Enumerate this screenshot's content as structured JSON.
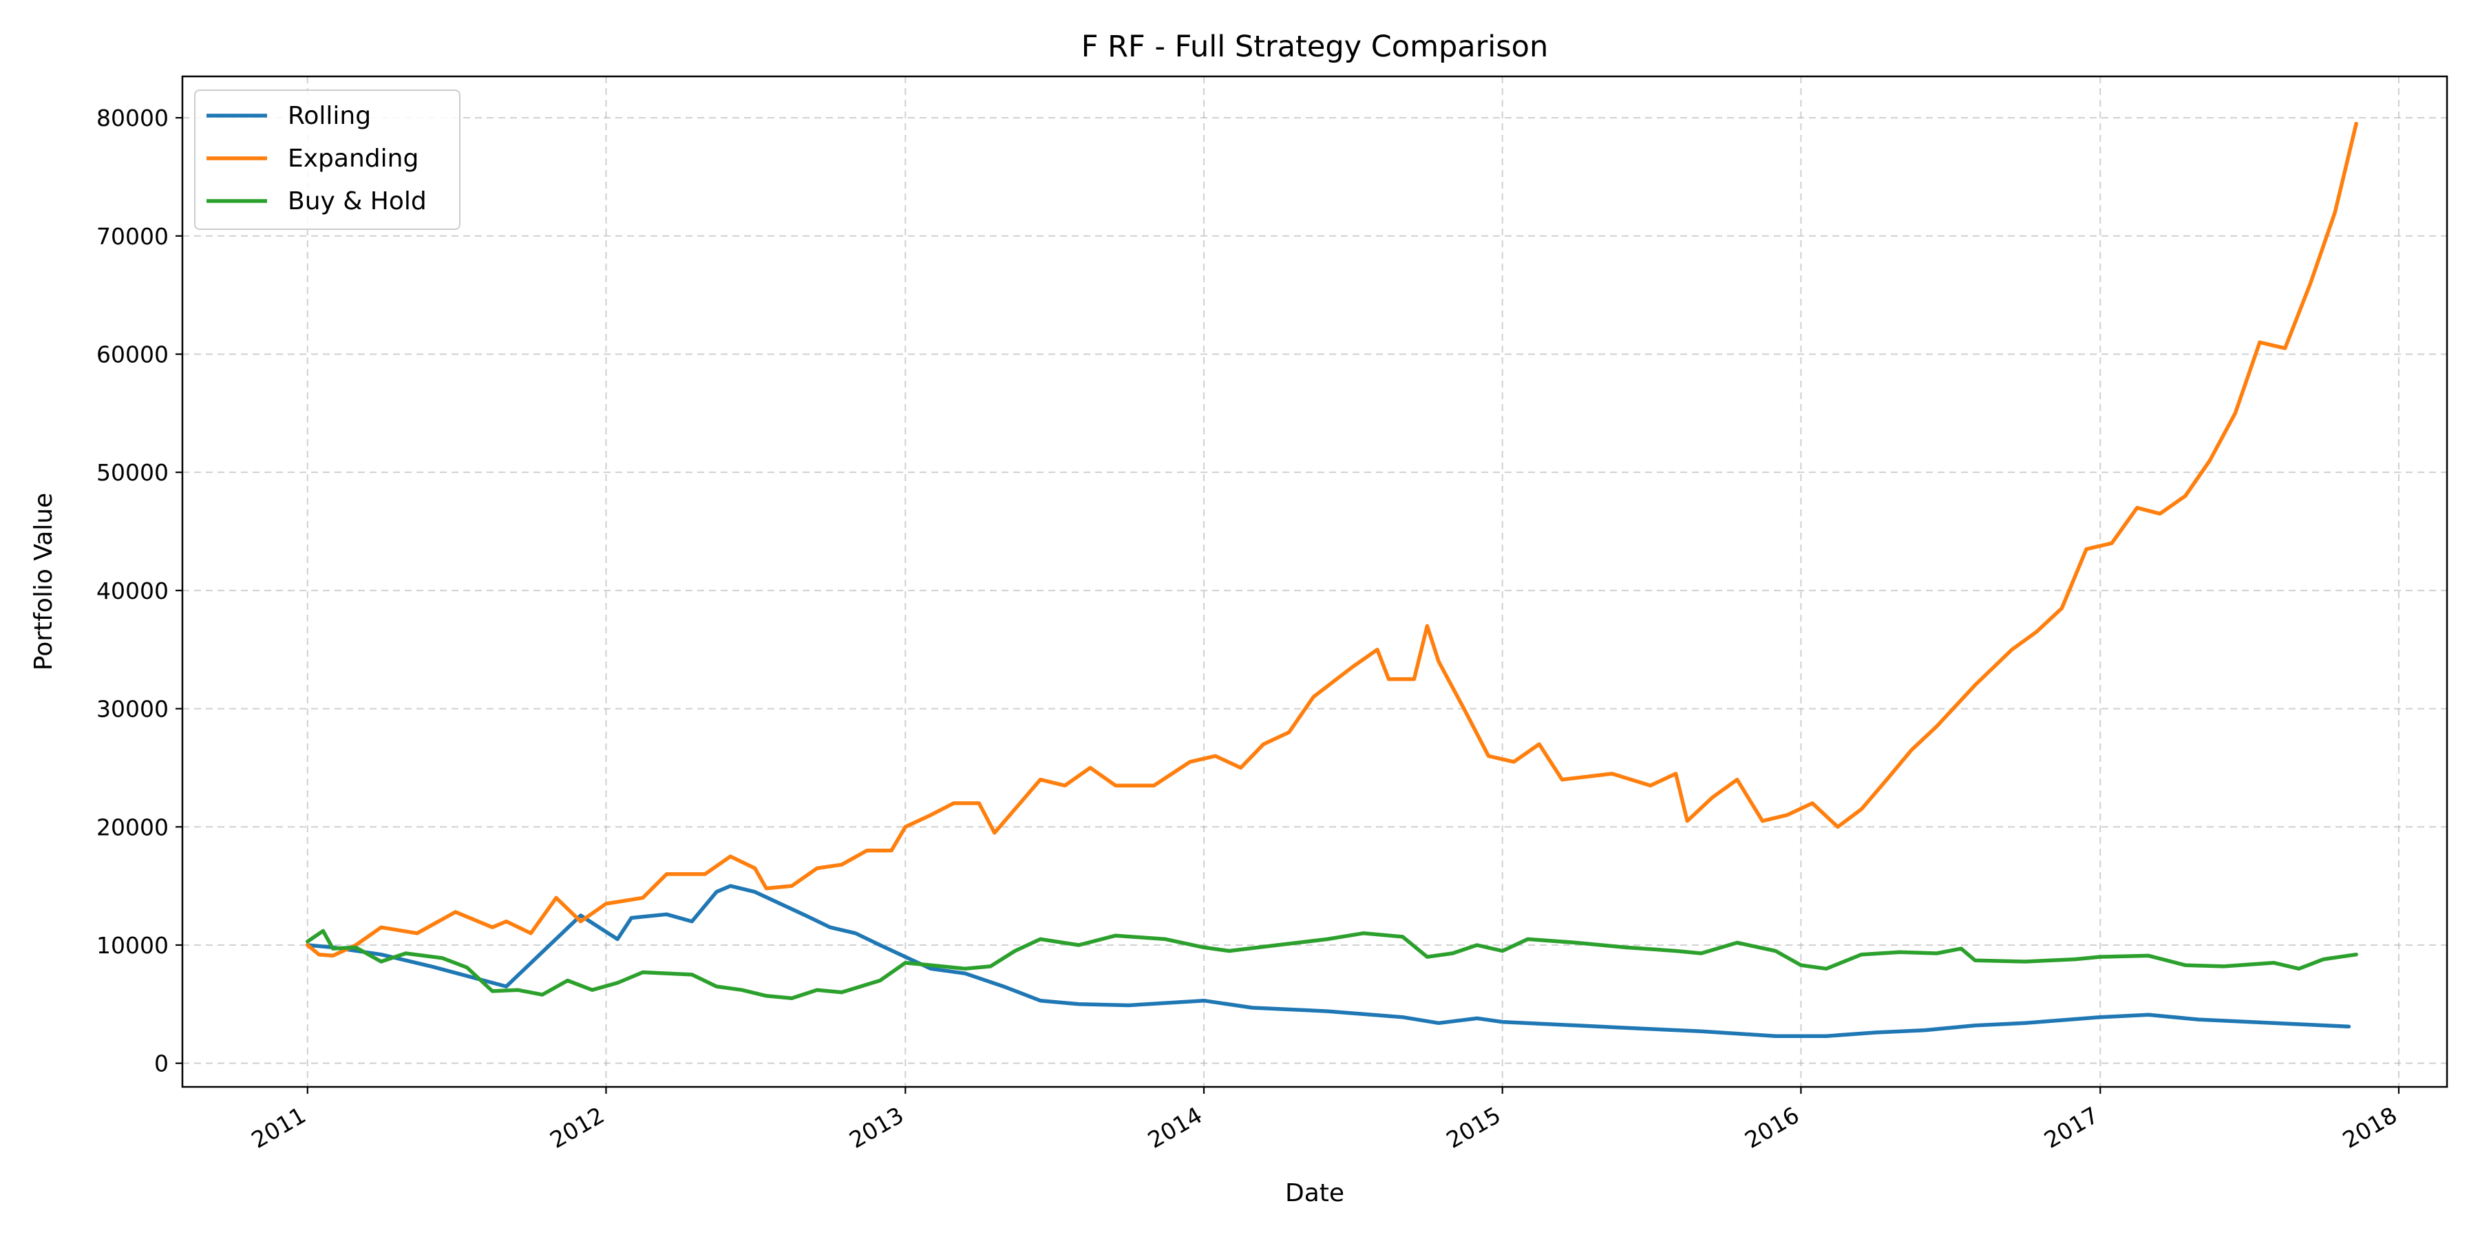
{
  "chart_data": {
    "type": "line",
    "title": "F RF - Full Strategy Comparison",
    "xlabel": "Date",
    "ylabel": "Portfolio Value",
    "xlim": [
      "2010-08-01",
      "2018-03-01"
    ],
    "ylim": [
      -2000,
      83500
    ],
    "x_ticks": [
      {
        "date": "2011-01-01",
        "label": "2011"
      },
      {
        "date": "2012-01-01",
        "label": "2012"
      },
      {
        "date": "2013-01-01",
        "label": "2013"
      },
      {
        "date": "2014-01-01",
        "label": "2014"
      },
      {
        "date": "2015-01-01",
        "label": "2015"
      },
      {
        "date": "2016-01-01",
        "label": "2016"
      },
      {
        "date": "2017-01-01",
        "label": "2017"
      },
      {
        "date": "2018-01-01",
        "label": "2018"
      }
    ],
    "y_ticks": [
      0,
      10000,
      20000,
      30000,
      40000,
      50000,
      60000,
      70000,
      80000
    ],
    "grid": true,
    "legend_position": "top-left",
    "series": [
      {
        "name": "Rolling",
        "color": "#1f77b4",
        "points": [
          [
            "2011-01-01",
            10000
          ],
          [
            "2011-02-01",
            9800
          ],
          [
            "2011-04-01",
            9200
          ],
          [
            "2011-06-01",
            8200
          ],
          [
            "2011-09-01",
            6500
          ],
          [
            "2011-12-01",
            12500
          ],
          [
            "2012-01-15",
            10500
          ],
          [
            "2012-02-01",
            12300
          ],
          [
            "2012-03-15",
            12600
          ],
          [
            "2012-04-15",
            12000
          ],
          [
            "2012-05-15",
            14500
          ],
          [
            "2012-06-01",
            15000
          ],
          [
            "2012-07-01",
            14500
          ],
          [
            "2012-08-01",
            13500
          ],
          [
            "2012-09-01",
            12500
          ],
          [
            "2012-10-01",
            11500
          ],
          [
            "2012-11-01",
            11000
          ],
          [
            "2012-12-01",
            10000
          ],
          [
            "2013-01-01",
            9000
          ],
          [
            "2013-02-01",
            8000
          ],
          [
            "2013-03-15",
            7600
          ],
          [
            "2013-05-01",
            6500
          ],
          [
            "2013-06-15",
            5300
          ],
          [
            "2013-08-01",
            5000
          ],
          [
            "2013-10-01",
            4900
          ],
          [
            "2014-01-01",
            5300
          ],
          [
            "2014-03-01",
            4700
          ],
          [
            "2014-06-01",
            4400
          ],
          [
            "2014-09-01",
            3900
          ],
          [
            "2014-10-15",
            3400
          ],
          [
            "2014-12-01",
            3800
          ],
          [
            "2015-01-01",
            3500
          ],
          [
            "2015-06-01",
            3000
          ],
          [
            "2015-09-01",
            2700
          ],
          [
            "2015-12-01",
            2300
          ],
          [
            "2016-02-01",
            2300
          ],
          [
            "2016-04-01",
            2600
          ],
          [
            "2016-06-01",
            2800
          ],
          [
            "2016-08-01",
            3200
          ],
          [
            "2016-10-01",
            3400
          ],
          [
            "2017-01-01",
            3900
          ],
          [
            "2017-03-01",
            4100
          ],
          [
            "2017-05-01",
            3700
          ],
          [
            "2017-08-01",
            3400
          ],
          [
            "2017-11-01",
            3100
          ]
        ]
      },
      {
        "name": "Expanding",
        "color": "#ff7f0e",
        "points": [
          [
            "2011-01-01",
            10000
          ],
          [
            "2011-01-15",
            9200
          ],
          [
            "2011-02-01",
            9100
          ],
          [
            "2011-03-01",
            10000
          ],
          [
            "2011-04-01",
            11500
          ],
          [
            "2011-05-15",
            11000
          ],
          [
            "2011-07-01",
            12800
          ],
          [
            "2011-08-15",
            11500
          ],
          [
            "2011-09-01",
            12000
          ],
          [
            "2011-10-01",
            11000
          ],
          [
            "2011-11-01",
            14000
          ],
          [
            "2011-12-01",
            12000
          ],
          [
            "2012-01-01",
            13500
          ],
          [
            "2012-02-15",
            14000
          ],
          [
            "2012-03-15",
            16000
          ],
          [
            "2012-05-01",
            16000
          ],
          [
            "2012-06-01",
            17500
          ],
          [
            "2012-07-01",
            16500
          ],
          [
            "2012-07-15",
            14800
          ],
          [
            "2012-08-15",
            15000
          ],
          [
            "2012-09-15",
            16500
          ],
          [
            "2012-10-15",
            16800
          ],
          [
            "2012-11-15",
            18000
          ],
          [
            "2012-12-15",
            18000
          ],
          [
            "2013-01-01",
            20000
          ],
          [
            "2013-02-01",
            21000
          ],
          [
            "2013-03-01",
            22000
          ],
          [
            "2013-04-01",
            22000
          ],
          [
            "2013-04-20",
            19500
          ],
          [
            "2013-05-15",
            21500
          ],
          [
            "2013-06-15",
            24000
          ],
          [
            "2013-07-15",
            23500
          ],
          [
            "2013-08-15",
            25000
          ],
          [
            "2013-09-15",
            23500
          ],
          [
            "2013-11-01",
            23500
          ],
          [
            "2013-12-15",
            25500
          ],
          [
            "2014-01-15",
            26000
          ],
          [
            "2014-02-15",
            25000
          ],
          [
            "2014-03-15",
            27000
          ],
          [
            "2014-04-15",
            28000
          ],
          [
            "2014-05-15",
            31000
          ],
          [
            "2014-07-01",
            33500
          ],
          [
            "2014-08-01",
            35000
          ],
          [
            "2014-08-15",
            32500
          ],
          [
            "2014-09-15",
            32500
          ],
          [
            "2014-10-01",
            37000
          ],
          [
            "2014-10-15",
            34000
          ],
          [
            "2014-11-15",
            30000
          ],
          [
            "2014-12-15",
            26000
          ],
          [
            "2015-01-15",
            25500
          ],
          [
            "2015-02-15",
            27000
          ],
          [
            "2015-03-15",
            24000
          ],
          [
            "2015-05-15",
            24500
          ],
          [
            "2015-07-01",
            23500
          ],
          [
            "2015-08-01",
            24500
          ],
          [
            "2015-08-15",
            20500
          ],
          [
            "2015-09-15",
            22500
          ],
          [
            "2015-10-15",
            24000
          ],
          [
            "2015-11-15",
            20500
          ],
          [
            "2015-12-15",
            21000
          ],
          [
            "2016-01-15",
            22000
          ],
          [
            "2016-02-15",
            20000
          ],
          [
            "2016-03-15",
            21500
          ],
          [
            "2016-04-15",
            24000
          ],
          [
            "2016-05-15",
            26500
          ],
          [
            "2016-06-15",
            28500
          ],
          [
            "2016-08-01",
            32000
          ],
          [
            "2016-09-15",
            35000
          ],
          [
            "2016-10-15",
            36500
          ],
          [
            "2016-11-15",
            38500
          ],
          [
            "2016-12-15",
            43500
          ],
          [
            "2017-01-15",
            44000
          ],
          [
            "2017-02-15",
            47000
          ],
          [
            "2017-03-15",
            46500
          ],
          [
            "2017-04-15",
            48000
          ],
          [
            "2017-05-15",
            51000
          ],
          [
            "2017-06-15",
            55000
          ],
          [
            "2017-07-15",
            61000
          ],
          [
            "2017-08-15",
            60500
          ],
          [
            "2017-09-15",
            66000
          ],
          [
            "2017-10-15",
            72000
          ],
          [
            "2017-11-10",
            79500
          ]
        ]
      },
      {
        "name": "Buy & Hold",
        "color": "#2ca02c",
        "points": [
          [
            "2011-01-01",
            10300
          ],
          [
            "2011-01-20",
            11200
          ],
          [
            "2011-02-01",
            9700
          ],
          [
            "2011-03-01",
            9800
          ],
          [
            "2011-04-01",
            8600
          ],
          [
            "2011-05-01",
            9300
          ],
          [
            "2011-06-15",
            8900
          ],
          [
            "2011-07-15",
            8100
          ],
          [
            "2011-08-15",
            6100
          ],
          [
            "2011-09-15",
            6200
          ],
          [
            "2011-10-15",
            5800
          ],
          [
            "2011-11-15",
            7000
          ],
          [
            "2011-12-15",
            6200
          ],
          [
            "2012-01-15",
            6800
          ],
          [
            "2012-02-15",
            7700
          ],
          [
            "2012-04-15",
            7500
          ],
          [
            "2012-05-15",
            6500
          ],
          [
            "2012-06-15",
            6200
          ],
          [
            "2012-07-15",
            5700
          ],
          [
            "2012-08-15",
            5500
          ],
          [
            "2012-09-15",
            6200
          ],
          [
            "2012-10-15",
            6000
          ],
          [
            "2012-12-01",
            7000
          ],
          [
            "2013-01-01",
            8500
          ],
          [
            "2013-02-01",
            8300
          ],
          [
            "2013-03-15",
            8000
          ],
          [
            "2013-04-15",
            8200
          ],
          [
            "2013-05-15",
            9500
          ],
          [
            "2013-06-15",
            10500
          ],
          [
            "2013-08-01",
            10000
          ],
          [
            "2013-09-15",
            10800
          ],
          [
            "2013-11-15",
            10500
          ],
          [
            "2014-01-01",
            9800
          ],
          [
            "2014-02-01",
            9500
          ],
          [
            "2014-04-01",
            10000
          ],
          [
            "2014-06-01",
            10500
          ],
          [
            "2014-07-15",
            11000
          ],
          [
            "2014-09-01",
            10700
          ],
          [
            "2014-10-01",
            9000
          ],
          [
            "2014-11-01",
            9300
          ],
          [
            "2014-12-01",
            10000
          ],
          [
            "2015-01-01",
            9500
          ],
          [
            "2015-02-01",
            10500
          ],
          [
            "2015-04-01",
            10200
          ],
          [
            "2015-06-01",
            9800
          ],
          [
            "2015-08-01",
            9500
          ],
          [
            "2015-09-01",
            9300
          ],
          [
            "2015-10-15",
            10200
          ],
          [
            "2015-12-01",
            9500
          ],
          [
            "2016-01-01",
            8300
          ],
          [
            "2016-02-01",
            8000
          ],
          [
            "2016-03-15",
            9200
          ],
          [
            "2016-05-01",
            9400
          ],
          [
            "2016-06-15",
            9300
          ],
          [
            "2016-07-15",
            9700
          ],
          [
            "2016-08-01",
            8700
          ],
          [
            "2016-10-01",
            8600
          ],
          [
            "2016-12-01",
            8800
          ],
          [
            "2017-01-01",
            9000
          ],
          [
            "2017-03-01",
            9100
          ],
          [
            "2017-04-15",
            8300
          ],
          [
            "2017-06-01",
            8200
          ],
          [
            "2017-08-01",
            8500
          ],
          [
            "2017-09-01",
            8000
          ],
          [
            "2017-10-01",
            8800
          ],
          [
            "2017-11-10",
            9200
          ]
        ]
      }
    ]
  }
}
